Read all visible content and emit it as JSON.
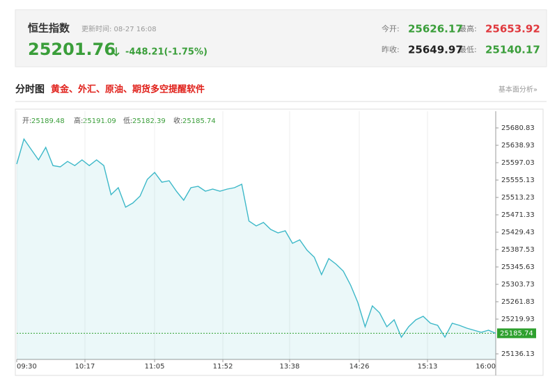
{
  "header": {
    "title": "恒生指数",
    "updated": "更新时间: 08-27 16:08",
    "price": 25201.76,
    "change": "-448.21(-1.75%)",
    "stats": [
      {
        "label": "今开:",
        "value": 25626.17
      },
      {
        "label": "最高:",
        "value": 25653.92
      },
      {
        "label": "昨收:",
        "value": 25649.97
      },
      {
        "label": "最低:",
        "value": 25140.17
      }
    ]
  },
  "banner": {
    "title": "分时图",
    "promo": "黄金、外汇、原油、期货多空提醒软件",
    "link": "基本面分析»"
  },
  "chart_data": {
    "type": "line",
    "info": [
      {
        "label": "开:",
        "value": 25189.48
      },
      {
        "label": "高:",
        "value": 25191.09
      },
      {
        "label": "低:",
        "value": 25182.39
      },
      {
        "label": "收:",
        "value": 25185.74
      }
    ],
    "x": [
      0,
      5,
      10,
      15,
      20,
      25,
      30,
      35,
      40,
      45,
      50,
      55,
      60,
      65,
      70,
      75,
      80,
      85,
      90,
      95,
      100,
      105,
      110,
      115,
      120,
      125,
      130,
      135,
      140,
      145,
      150,
      155,
      160,
      165,
      170,
      175,
      180,
      185,
      190,
      195,
      200,
      205,
      210,
      215,
      220,
      225,
      230,
      235,
      240,
      245,
      250,
      255,
      260,
      265,
      270,
      275,
      280,
      285,
      290,
      295,
      300,
      305,
      310,
      315,
      320,
      325,
      330
    ],
    "series": [
      {
        "color": "#3cb8c8",
        "values": [
          25593.7,
          25654.0,
          25628.9,
          25603.7,
          25633.9,
          25590.0,
          25587.0,
          25600.0,
          25590.0,
          25603.7,
          25590.0,
          25603.7,
          25590.0,
          25520.0,
          25536.7,
          25489.8,
          25499.9,
          25516.6,
          25556.8,
          25573.6,
          25550.0,
          25553.5,
          25528.3,
          25506.5,
          25536.7,
          25540.0,
          25528.3,
          25533.4,
          25528.3,
          25533.4,
          25536.7,
          25545.0,
          25456.3,
          25444.5,
          25452.9,
          25436.2,
          25427.8,
          25432.8,
          25402.6,
          25411.0,
          25386.0,
          25369.1,
          25327.2,
          25365.8,
          25352.4,
          25335.6,
          25302.0,
          25260.2,
          25201.5,
          25251.8,
          25235.0,
          25201.5,
          25218.3,
          25176.4,
          25201.5,
          25218.3,
          25226.7,
          25210.0,
          25204.9,
          25176.4,
          25210.0,
          25204.9,
          25198.2,
          25193.2,
          25188.1,
          25193.2,
          25185.74
        ]
      }
    ],
    "current": 25185.74,
    "current_color": "#2ea02e",
    "xlim": [
      0,
      330
    ],
    "ylim": [
      25122.76,
      25721.05
    ],
    "xticks": [
      {
        "value": 0,
        "label": "09:30"
      },
      {
        "value": 47,
        "label": "10:17"
      },
      {
        "value": 95,
        "label": "11:05"
      },
      {
        "value": 142,
        "label": "11:52"
      },
      {
        "value": 188,
        "label": "13:38"
      },
      {
        "value": 236,
        "label": "14:26"
      },
      {
        "value": 283,
        "label": "15:13"
      },
      {
        "value": 330,
        "label": "16:00"
      }
    ],
    "yticks": [
      25680.83,
      25638.93,
      25597.03,
      25555.13,
      25513.23,
      25471.33,
      25429.43,
      25387.53,
      25345.63,
      25303.73,
      25261.83,
      25219.93,
      25136.13
    ],
    "grid": "x"
  }
}
